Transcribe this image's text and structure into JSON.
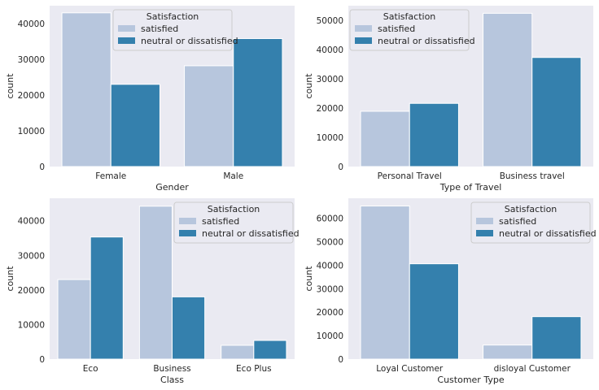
{
  "colors": {
    "satisfied": "#b7c6dd",
    "dissatisfied": "#3480ad",
    "background": "#eaeaf2"
  },
  "chart_data": [
    {
      "type": "bar",
      "xlabel": "Gender",
      "ylabel": "count",
      "categories": [
        "Female",
        "Male"
      ],
      "ylim": [
        0,
        45000
      ],
      "yticks": [
        0,
        10000,
        20000,
        30000,
        40000
      ],
      "legend_title": "Satisfaction",
      "legend_position": "upper-center",
      "grid": false,
      "series": [
        {
          "name": "satisfied",
          "values": [
            43000,
            28200
          ]
        },
        {
          "name": "neutral or dissatisfied",
          "values": [
            23000,
            35800
          ]
        }
      ]
    },
    {
      "type": "bar",
      "xlabel": "Type of Travel",
      "ylabel": "count",
      "categories": [
        "Personal Travel",
        "Business travel"
      ],
      "ylim": [
        0,
        55000
      ],
      "yticks": [
        0,
        10000,
        20000,
        30000,
        40000,
        50000
      ],
      "legend_title": "Satisfaction",
      "legend_position": "upper-left",
      "grid": false,
      "series": [
        {
          "name": "satisfied",
          "values": [
            18900,
            52400
          ]
        },
        {
          "name": "neutral or dissatisfied",
          "values": [
            21600,
            37300
          ]
        }
      ]
    },
    {
      "type": "bar",
      "xlabel": "Class",
      "ylabel": "count",
      "categories": [
        "Eco",
        "Business",
        "Eco Plus"
      ],
      "ylim": [
        0,
        46500
      ],
      "yticks": [
        0,
        10000,
        20000,
        30000,
        40000
      ],
      "legend_title": "Satisfaction",
      "legend_position": "upper-right",
      "grid": false,
      "series": [
        {
          "name": "satisfied",
          "values": [
            23000,
            44200,
            4000
          ]
        },
        {
          "name": "neutral or dissatisfied",
          "values": [
            35300,
            18000,
            5400
          ]
        }
      ]
    },
    {
      "type": "bar",
      "xlabel": "Customer Type",
      "ylabel": "count",
      "categories": [
        "Loyal Customer",
        "disloyal Customer"
      ],
      "ylim": [
        0,
        68500
      ],
      "yticks": [
        0,
        10000,
        20000,
        30000,
        40000,
        50000,
        60000
      ],
      "legend_title": "Satisfaction",
      "legend_position": "upper-right",
      "grid": false,
      "series": [
        {
          "name": "satisfied",
          "values": [
            65200,
            6000
          ]
        },
        {
          "name": "neutral or dissatisfied",
          "values": [
            40600,
            18100
          ]
        }
      ]
    }
  ]
}
